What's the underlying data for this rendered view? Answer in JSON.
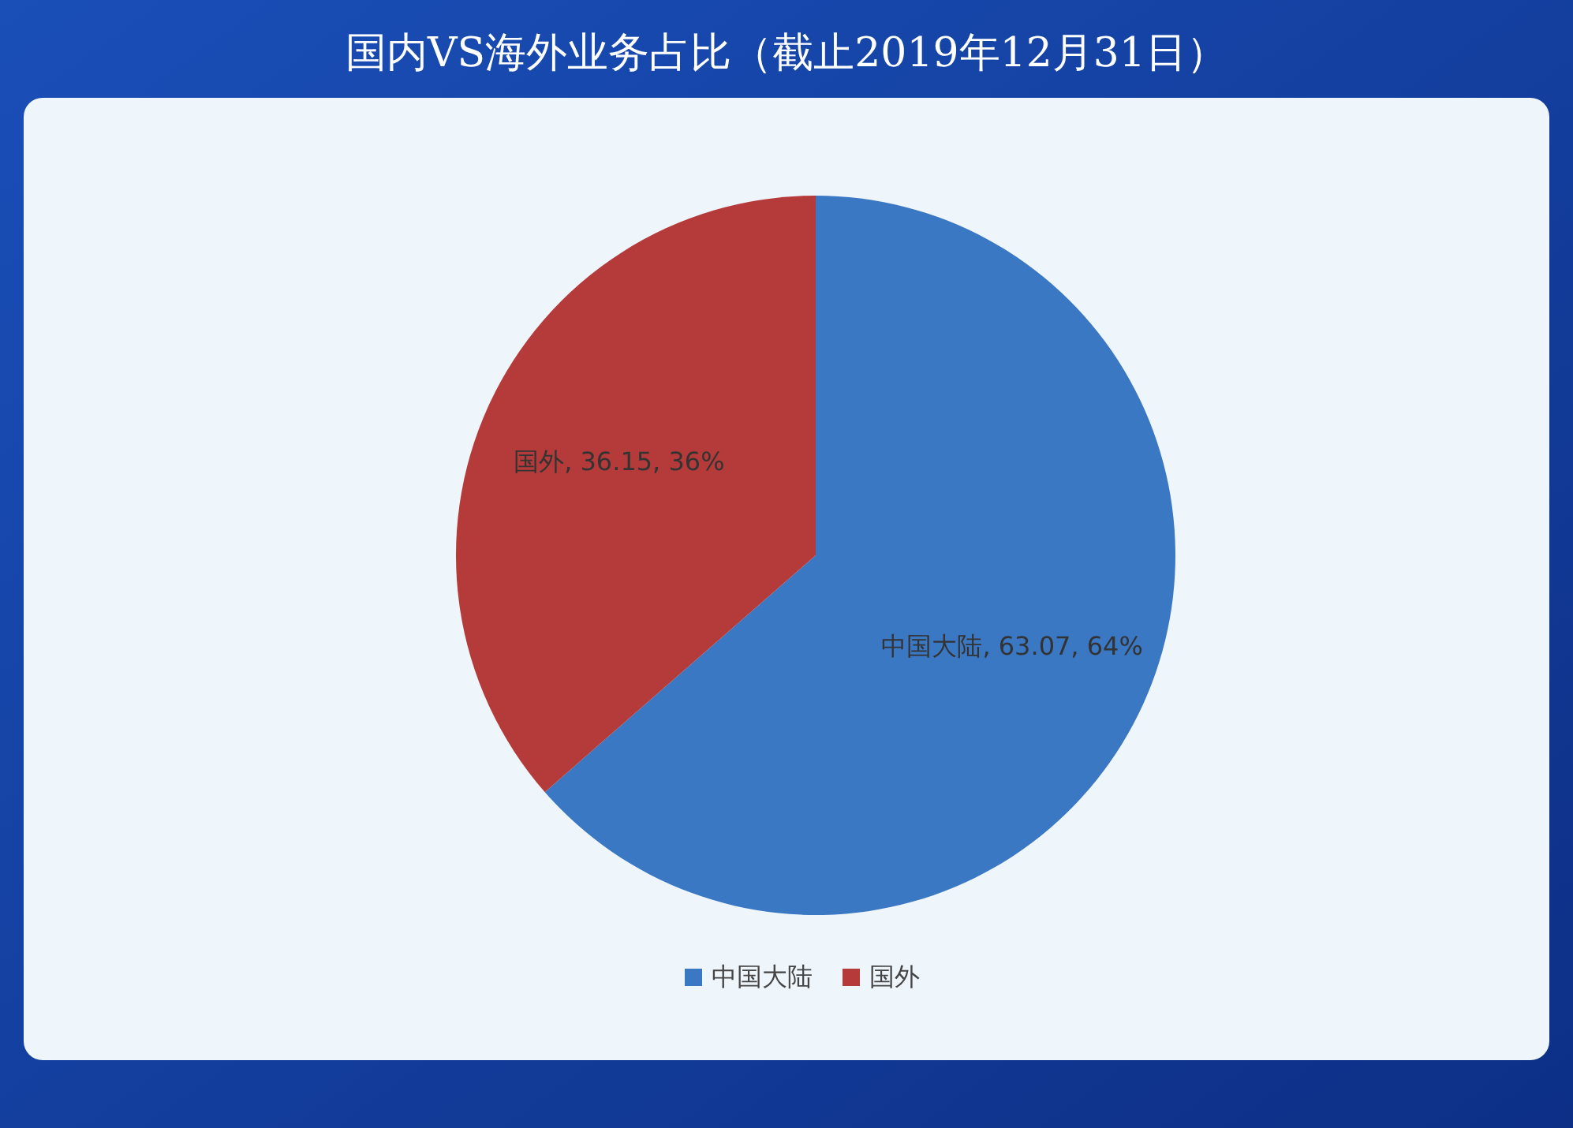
{
  "chart_data": {
    "type": "pie",
    "title": "国内VS海外业务占比（截止2019年12月31日）",
    "categories": [
      "中国大陆",
      "国外"
    ],
    "values": [
      63.07,
      36.15
    ],
    "value_labels": [
      ", 63.07, 64%",
      ", 36.15, 36%"
    ],
    "colors": [
      "#3a78c4",
      "#b53a3a"
    ],
    "legend": "bottom"
  }
}
